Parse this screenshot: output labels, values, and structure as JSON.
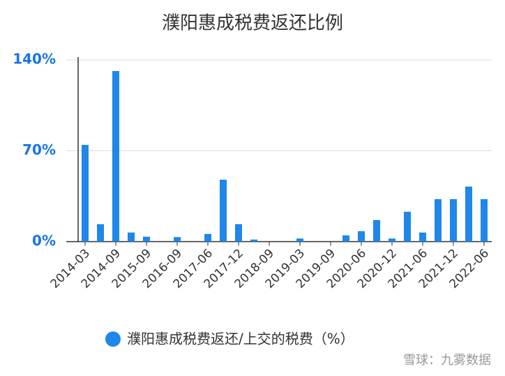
{
  "chart_data": {
    "type": "bar",
    "title": "濮阳惠成税费返还比例",
    "categories": [
      "2014-03",
      null,
      "2014-09",
      null,
      "2015-09",
      null,
      "2016-09",
      null,
      "2017-06",
      null,
      "2017-12",
      null,
      "2018-09",
      null,
      "2019-03",
      null,
      "2019-09",
      null,
      "2020-06",
      null,
      "2020-12",
      null,
      "2021-06",
      null,
      "2021-12",
      null,
      "2022-06"
    ],
    "series": [
      {
        "name": "濮阳惠成税费返还/上交的税费（%）",
        "color": "#1f86ea",
        "values": [
          74.5,
          13.4,
          131.4,
          7,
          3.8,
          0,
          3.5,
          0,
          5.9,
          47.7,
          13.4,
          1.6,
          0,
          0,
          2.4,
          0,
          0,
          4.8,
          8,
          16.6,
          2.4,
          23,
          7,
          32.7,
          32.7,
          42.4,
          32.7
        ]
      }
    ],
    "ylim": [
      0,
      140
    ],
    "yticks": [
      {
        "value": 0,
        "label": "0%"
      },
      {
        "value": 70,
        "label": "70%"
      },
      {
        "value": 140,
        "label": "140%"
      }
    ],
    "grid": true,
    "legend": "bottom",
    "watermark": "雪球：九雾数据"
  }
}
